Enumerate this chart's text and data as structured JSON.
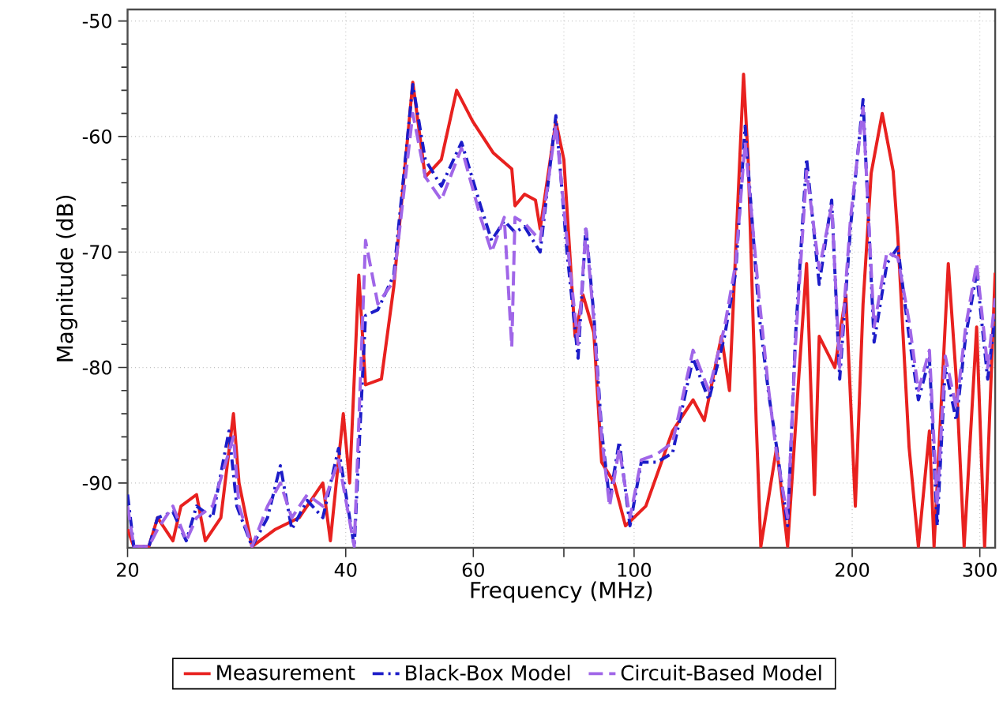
{
  "chart_data": {
    "type": "line",
    "xlabel": "Frequency (MHz)",
    "ylabel": "Magnitude (dB)",
    "log": "x",
    "xlim": [
      20,
      315
    ],
    "ylim": [
      -95.6,
      -49
    ],
    "xticks": [
      20,
      40,
      60,
      {
        "value": 80,
        "label": null
      },
      100,
      200,
      300
    ],
    "yticks": [
      -90,
      -80,
      -70,
      -60,
      -50
    ],
    "grid": true,
    "legend": "bottom",
    "marker": "none",
    "series": [
      {
        "name": "Measurement",
        "color": "#e8211f",
        "line_style": "solid",
        "x": [
          20,
          20.4,
          21.4,
          22.0,
          23.1,
          23.7,
          24.9,
          25.6,
          26.9,
          28.0,
          28.5,
          29.7,
          32.0,
          34.5,
          37.2,
          38.1,
          39.7,
          40.5,
          41.7,
          42.6,
          44.8,
          46.6,
          49.5,
          51.5,
          54.2,
          56.9,
          59.9,
          63.9,
          67.8,
          68.5,
          70.6,
          73.1,
          74.2,
          78.0,
          80.0,
          82.9,
          85.0,
          88.0,
          90.2,
          93.9,
          97.3,
          103.8,
          113.0,
          120.6,
          125.0,
          132.0,
          135.4,
          141.6,
          143.7,
          147.4,
          149.6,
          157.3,
          162.9,
          168.7,
          173.0,
          177.4,
          180.1,
          189.3,
          196.0,
          202.0,
          207.0,
          212.4,
          220.0,
          227.8,
          231.2,
          239.6,
          246.8,
          255.6,
          259.4,
          271.4,
          278.4,
          285.4,
          297.0,
          304.6,
          315
        ],
        "values": [
          -94,
          -95.5,
          -95.5,
          -93,
          -95,
          -92,
          -91,
          -95,
          -93,
          -84,
          -90,
          -95.5,
          -94,
          -93,
          -90,
          -95,
          -84,
          -90,
          -72,
          -81.5,
          -81,
          -73,
          -55.3,
          -63.5,
          -62,
          -56,
          -58.7,
          -61.4,
          -62.8,
          -66,
          -65,
          -65.5,
          -68,
          -58.7,
          -62,
          -77.3,
          -73.7,
          -77,
          -88.2,
          -90,
          -93.7,
          -92,
          -85.5,
          -82.8,
          -84.6,
          -77.3,
          -82,
          -54.6,
          -62,
          -84.6,
          -95.5,
          -86.9,
          -95.5,
          -81,
          -71,
          -91,
          -77.3,
          -80,
          -73.7,
          -92,
          -74.5,
          -63.2,
          -58,
          -63,
          -68.7,
          -86.9,
          -95.5,
          -85.5,
          -95.5,
          -71,
          -81,
          -95.5,
          -76.5,
          -95.5,
          -71.8
        ]
      },
      {
        "name": "Black-Box Model",
        "color": "#1c1cc8",
        "line_style": "dashdot",
        "x": [
          20,
          20.4,
          21.4,
          22.0,
          23.1,
          24.1,
          24.9,
          26.2,
          27.6,
          28.3,
          29.7,
          31.2,
          32.5,
          33.7,
          35.4,
          37.2,
          39.1,
          41.1,
          42.6,
          44.3,
          46.6,
          49.5,
          51.5,
          54.2,
          57.8,
          61.4,
          63.6,
          66.2,
          68.5,
          70.6,
          74.2,
          78.0,
          80.8,
          83.7,
          85.8,
          88.0,
          90.2,
          92.5,
          95.4,
          98.7,
          102.3,
          107.5,
          113.0,
          120.6,
          126.8,
          133.3,
          138.1,
          142.3,
          148.8,
          153.4,
          157.3,
          162.9,
          167.0,
          173.0,
          180.1,
          187.4,
          192.2,
          199.0,
          207.0,
          214.4,
          223.3,
          231.2,
          239.6,
          246.8,
          255.6,
          262.0,
          268.8,
          278.4,
          286.8,
          297.0,
          307.6,
          315
        ],
        "values": [
          -91,
          -95.5,
          -95.5,
          -93,
          -92.5,
          -95,
          -92,
          -93,
          -85.5,
          -92,
          -95.5,
          -93,
          -88.5,
          -94,
          -91.5,
          -93,
          -87,
          -95.5,
          -75.5,
          -75,
          -72,
          -55.5,
          -62,
          -64.3,
          -60.5,
          -66,
          -69,
          -67.3,
          -68.3,
          -67.8,
          -70,
          -58.2,
          -70,
          -79.2,
          -67.8,
          -75.5,
          -85.5,
          -91.5,
          -86.4,
          -93.7,
          -88.2,
          -88.2,
          -87.4,
          -79.2,
          -82.8,
          -77.3,
          -71.8,
          -59.1,
          -75.5,
          -82.3,
          -86.9,
          -93.7,
          -77.3,
          -61.9,
          -72.8,
          -65.5,
          -81,
          -67.8,
          -56.8,
          -77.8,
          -71,
          -69.6,
          -77.3,
          -82.8,
          -79.2,
          -93.7,
          -80,
          -84.6,
          -77.3,
          -71.8,
          -81,
          -75.5
        ]
      },
      {
        "name": "Circuit-Based Model",
        "color": "#a066e8",
        "line_style": "dashed",
        "x": [
          20,
          20.4,
          21.4,
          22.0,
          23.1,
          24.1,
          24.9,
          26.2,
          28.0,
          28.5,
          29.7,
          31.2,
          32.5,
          33.7,
          35.4,
          37.2,
          39.1,
          41.1,
          42.6,
          44.3,
          46.6,
          49.5,
          51.5,
          54.2,
          57.8,
          61.4,
          63.6,
          66.2,
          67.8,
          68.5,
          70.6,
          74.2,
          78.0,
          80.8,
          83.7,
          85.8,
          88.0,
          90.2,
          92.5,
          95.4,
          98.7,
          102.3,
          107.5,
          113.0,
          120.6,
          126.8,
          133.3,
          138.1,
          142.3,
          148.8,
          153.4,
          157.3,
          162.9,
          167.0,
          173.0,
          180.1,
          187.4,
          192.2,
          199.0,
          207.0,
          214.4,
          223.3,
          231.2,
          239.6,
          246.8,
          255.6,
          262.0,
          268.8,
          278.4,
          286.8,
          297.0,
          307.6,
          315
        ],
        "values": [
          -92,
          -95.5,
          -95.5,
          -94,
          -92,
          -95,
          -93,
          -92,
          -86,
          -92,
          -95.5,
          -92,
          -90,
          -93,
          -91,
          -92,
          -88,
          -95.5,
          -69,
          -74.5,
          -72.5,
          -58,
          -63.5,
          -65.5,
          -61,
          -67,
          -70,
          -67,
          -78.2,
          -67,
          -67.5,
          -69,
          -59,
          -69,
          -78,
          -68,
          -76,
          -86,
          -92,
          -87,
          -93,
          -88,
          -87.5,
          -86.5,
          -78.5,
          -82,
          -76.5,
          -71,
          -60.5,
          -74,
          -82,
          -87.5,
          -93,
          -78,
          -63,
          -71.5,
          -66,
          -80,
          -67,
          -57.5,
          -76.5,
          -70,
          -70.5,
          -76,
          -82,
          -78.5,
          -92,
          -79,
          -83.5,
          -76.5,
          -71,
          -80,
          -74
        ]
      }
    ]
  }
}
